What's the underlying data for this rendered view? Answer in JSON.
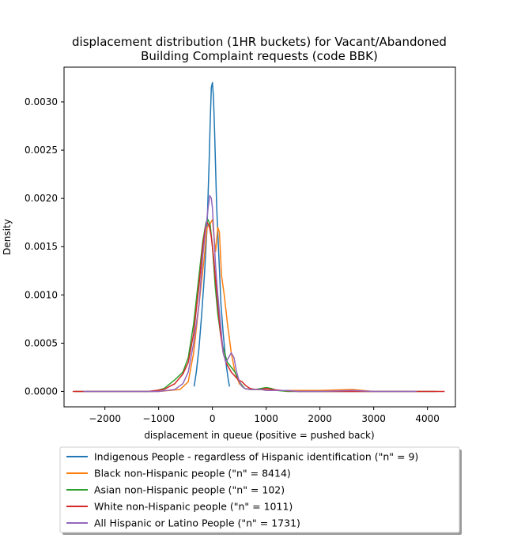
{
  "chart_data": {
    "type": "line",
    "title": [
      "displacement distribution (1HR buckets) for Vacant/Abandoned",
      "Building Complaint requests (code BBK)"
    ],
    "xlabel": "displacement in queue (positive = pushed back)",
    "ylabel": "Density",
    "xlim": [
      -2760,
      4520
    ],
    "ylim": [
      -0.00016,
      0.00336
    ],
    "xticks": [
      -2000,
      -1000,
      0,
      1000,
      2000,
      3000,
      4000
    ],
    "xtick_labels": [
      "−2000",
      "−1000",
      "0",
      "1000",
      "2000",
      "3000",
      "4000"
    ],
    "yticks": [
      0.0,
      0.0005,
      0.001,
      0.0015,
      0.002,
      0.0025,
      0.003
    ],
    "ytick_labels": [
      "0.0000",
      "0.0005",
      "0.0010",
      "0.0015",
      "0.0020",
      "0.0025",
      "0.0030"
    ],
    "grid": false,
    "legend_position": "below",
    "series": [
      {
        "name": "Indigenous People - regardless of Hispanic identification (\"n\" = 9)",
        "color": "#1f77b4",
        "x": [
          -340,
          -300,
          -250,
          -200,
          -150,
          -100,
          -60,
          -40,
          -20,
          0,
          20,
          40,
          80,
          120,
          160,
          200,
          250,
          300,
          320
        ],
        "y": [
          5e-05,
          0.0002,
          0.00045,
          0.0008,
          0.0012,
          0.0017,
          0.0024,
          0.0028,
          0.00315,
          0.0032,
          0.00305,
          0.0027,
          0.0019,
          0.0014,
          0.0009,
          0.0006,
          0.0003,
          0.0001,
          5e-05
        ]
      },
      {
        "name": "Black non-Hispanic people (\"n\" = 8414)",
        "color": "#ff7f0e",
        "x": [
          -2360,
          -1000,
          -600,
          -450,
          -350,
          -250,
          -150,
          -100,
          -50,
          0,
          30,
          60,
          100,
          130,
          170,
          220,
          280,
          350,
          420,
          500,
          560,
          600,
          700,
          900,
          1100,
          1500,
          2000,
          2600,
          3000,
          3740
        ],
        "y": [
          0.0,
          0.0,
          2e-05,
          0.0001,
          0.0004,
          0.0009,
          0.0014,
          0.0017,
          0.00173,
          0.00178,
          0.0016,
          0.00145,
          0.0017,
          0.00165,
          0.0012,
          0.001,
          0.0007,
          0.0004,
          0.0002,
          8e-05,
          5e-05,
          3e-05,
          2e-05,
          2e-05,
          1e-05,
          1e-05,
          1e-05,
          2e-05,
          0.0,
          0.0
        ]
      },
      {
        "name": "Asian non-Hispanic people (\"n\" = 102)",
        "color": "#2ca02c",
        "x": [
          -2560,
          -1100,
          -900,
          -700,
          -550,
          -450,
          -350,
          -250,
          -180,
          -120,
          -80,
          -40,
          0,
          50,
          100,
          150,
          200,
          280,
          350,
          420,
          500,
          600,
          700,
          800,
          900,
          1000,
          1100,
          1200,
          1400,
          1800,
          2500,
          3200,
          4160
        ],
        "y": [
          0.0,
          0.0,
          3e-05,
          0.00012,
          0.0002,
          0.00035,
          0.0007,
          0.0012,
          0.00155,
          0.00175,
          0.00178,
          0.00172,
          0.0015,
          0.0011,
          0.0008,
          0.0006,
          0.00045,
          0.0003,
          0.00025,
          0.0002,
          0.0001,
          3e-05,
          2e-05,
          2e-05,
          3e-05,
          4e-05,
          3e-05,
          1e-05,
          0.0,
          0.0,
          0.0,
          0.0,
          0.0
        ]
      },
      {
        "name": "White non-Hispanic people (\"n\" = 1011)",
        "color": "#d62728",
        "x": [
          -2600,
          -1200,
          -900,
          -700,
          -550,
          -450,
          -350,
          -250,
          -180,
          -130,
          -100,
          -60,
          -20,
          20,
          60,
          100,
          150,
          200,
          250,
          300,
          350,
          400,
          480,
          550,
          620,
          700,
          800,
          900,
          1000,
          1100,
          1300,
          1600,
          2000,
          2700,
          3500,
          4320
        ],
        "y": [
          0.0,
          0.0,
          2e-05,
          8e-05,
          0.00018,
          0.0003,
          0.0006,
          0.0011,
          0.0015,
          0.0017,
          0.00175,
          0.00172,
          0.0016,
          0.0014,
          0.00115,
          0.0009,
          0.0006,
          0.0004,
          0.0003,
          0.00025,
          0.0002,
          0.00017,
          0.00012,
          0.0001,
          6e-05,
          3e-05,
          2e-05,
          2e-05,
          3e-05,
          2e-05,
          1e-05,
          0.0,
          0.0,
          0.0,
          0.0,
          0.0
        ]
      },
      {
        "name": "All Hispanic or Latino People (\"n\" = 1731)",
        "color": "#9467bd",
        "x": [
          -2400,
          -1000,
          -700,
          -550,
          -450,
          -350,
          -250,
          -180,
          -120,
          -80,
          -50,
          -20,
          0,
          30,
          60,
          100,
          150,
          200,
          250,
          300,
          350,
          400,
          450,
          500,
          550,
          600,
          700,
          800,
          900,
          1000,
          1200,
          1400,
          1600,
          2000,
          2600,
          3000,
          3800
        ],
        "y": [
          0.0,
          0.0,
          2e-05,
          8e-05,
          0.0002,
          0.0005,
          0.0009,
          0.0014,
          0.0017,
          0.0019,
          0.00203,
          0.002,
          0.0019,
          0.0016,
          0.0013,
          0.001,
          0.0007,
          0.0004,
          0.0003,
          0.00035,
          0.0004,
          0.00035,
          0.0002,
          0.0001,
          5e-05,
          3e-05,
          2e-05,
          2e-05,
          2e-05,
          1e-05,
          1e-05,
          1e-05,
          0.0,
          0.0,
          1e-05,
          0.0,
          0.0
        ]
      }
    ]
  }
}
